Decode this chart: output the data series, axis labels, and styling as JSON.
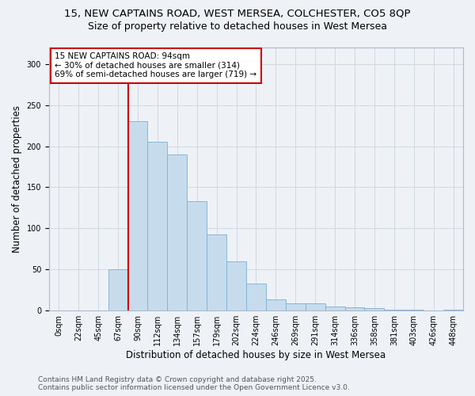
{
  "title_line1": "15, NEW CAPTAINS ROAD, WEST MERSEA, COLCHESTER, CO5 8QP",
  "title_line2": "Size of property relative to detached houses in West Mersea",
  "xlabel": "Distribution of detached houses by size in West Mersea",
  "ylabel": "Number of detached properties",
  "categories": [
    "0sqm",
    "22sqm",
    "45sqm",
    "67sqm",
    "90sqm",
    "112sqm",
    "134sqm",
    "157sqm",
    "179sqm",
    "202sqm",
    "224sqm",
    "246sqm",
    "269sqm",
    "291sqm",
    "314sqm",
    "336sqm",
    "358sqm",
    "381sqm",
    "403sqm",
    "426sqm",
    "448sqm"
  ],
  "bar_values": [
    0,
    0,
    0,
    50,
    230,
    205,
    190,
    133,
    93,
    60,
    33,
    14,
    9,
    9,
    5,
    4,
    3,
    1,
    1,
    0,
    1
  ],
  "bar_color": "#c6dcec",
  "bar_edge_color": "#7bafd4",
  "vline_color": "#cc0000",
  "vline_x_index": 4,
  "annotation_text": "15 NEW CAPTAINS ROAD: 94sqm\n← 30% of detached houses are smaller (314)\n69% of semi-detached houses are larger (719) →",
  "annotation_box_facecolor": "white",
  "annotation_box_edgecolor": "#cc0000",
  "ylim": [
    0,
    320
  ],
  "yticks": [
    0,
    50,
    100,
    150,
    200,
    250,
    300
  ],
  "grid_color": "#d0d8e0",
  "background_color": "#eef2f7",
  "footer_text": "Contains HM Land Registry data © Crown copyright and database right 2025.\nContains public sector information licensed under the Open Government Licence v3.0.",
  "title_fontsize": 9.5,
  "subtitle_fontsize": 9,
  "axis_label_fontsize": 8.5,
  "tick_fontsize": 7,
  "annotation_fontsize": 7.5,
  "footer_fontsize": 6.5
}
